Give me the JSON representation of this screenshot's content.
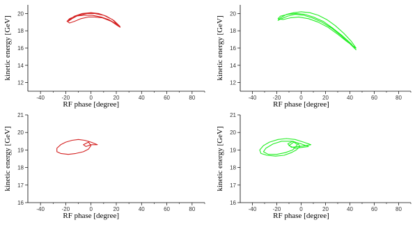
{
  "chart_data": [
    {
      "type": "line",
      "xlabel": "RF phase [degree]",
      "ylabel": "kinetic energy [GeV]",
      "xlim": [
        -50,
        90
      ],
      "ylim": [
        11,
        21
      ],
      "xticks": [
        "-40",
        "-20",
        "0",
        "20",
        "40",
        "60",
        "80"
      ],
      "yticks": [
        "12",
        "14",
        "16",
        "18",
        "20"
      ],
      "series": [
        {
          "color": "#d42020",
          "x": [
            23,
            17,
            10,
            3,
            -3,
            -10,
            -15,
            -18,
            -17,
            -13,
            -7,
            0,
            6,
            12,
            18,
            23,
            22,
            16,
            9,
            3,
            -2,
            -8,
            -13,
            -17,
            -19,
            -17,
            -12,
            -6,
            1,
            8,
            14,
            20,
            23
          ],
          "y": [
            18.4,
            19.3,
            19.8,
            20.0,
            20.0,
            19.8,
            19.4,
            19.1,
            19.3,
            19.7,
            20.0,
            20.1,
            20.0,
            19.7,
            19.2,
            18.5,
            18.5,
            19.1,
            19.5,
            19.6,
            19.6,
            19.4,
            19.1,
            18.9,
            19.1,
            19.4,
            19.7,
            19.8,
            19.8,
            19.6,
            19.3,
            18.8,
            18.4
          ]
        }
      ]
    },
    {
      "type": "line",
      "xlabel": "RF phase [degree]",
      "ylabel": "kinetic energy [GeV]",
      "xlim": [
        -50,
        90
      ],
      "ylim": [
        11,
        21
      ],
      "xticks": [
        "-40",
        "-20",
        "0",
        "20",
        "40",
        "60",
        "80"
      ],
      "yticks": [
        "12",
        "14",
        "16",
        "18",
        "20"
      ],
      "series": [
        {
          "color": "#22ee22",
          "x": [
            45,
            40,
            33,
            25,
            17,
            9,
            2,
            -5,
            -11,
            -16,
            -19,
            -17,
            -12,
            -6,
            0,
            7,
            14,
            21,
            28,
            35,
            41,
            45,
            38,
            30,
            22,
            14,
            6,
            -2,
            -9,
            -15,
            -19,
            -17,
            -11,
            -4,
            3,
            10,
            18,
            26,
            34,
            41,
            45
          ],
          "y": [
            15.8,
            16.5,
            17.4,
            18.3,
            19.0,
            19.5,
            19.8,
            19.9,
            19.7,
            19.4,
            19.2,
            19.5,
            19.9,
            20.1,
            20.2,
            20.1,
            19.8,
            19.3,
            18.6,
            17.7,
            16.8,
            16.0,
            16.7,
            17.6,
            18.4,
            19.0,
            19.4,
            19.6,
            19.5,
            19.3,
            19.4,
            19.7,
            19.9,
            20.0,
            19.9,
            19.6,
            19.1,
            18.3,
            17.4,
            16.5,
            15.8
          ]
        }
      ]
    },
    {
      "type": "line",
      "xlabel": "RF phase [degree]",
      "ylabel": "kinetic energy [GeV]",
      "xlim": [
        -50,
        90
      ],
      "ylim": [
        16,
        21
      ],
      "xticks": [
        "-40",
        "-20",
        "0",
        "20",
        "40",
        "60",
        "80"
      ],
      "yticks": [
        "16",
        "17",
        "18",
        "19",
        "20",
        "21"
      ],
      "series": [
        {
          "color": "#d42020",
          "x": [
            5,
            0,
            -5,
            -10,
            -15,
            -20,
            -24,
            -27,
            -27,
            -24,
            -18,
            -12,
            -6,
            -2,
            0,
            -2,
            -6,
            -4,
            0,
            5
          ],
          "y": [
            19.3,
            19.45,
            19.55,
            19.6,
            19.55,
            19.45,
            19.3,
            19.1,
            18.9,
            18.8,
            18.75,
            18.8,
            18.9,
            19.05,
            19.25,
            19.45,
            19.3,
            19.2,
            19.3,
            19.3
          ]
        }
      ]
    },
    {
      "type": "line",
      "xlabel": "RF phase [degree]",
      "ylabel": "kinetic energy [GeV]",
      "xlim": [
        -50,
        90
      ],
      "ylim": [
        16,
        21
      ],
      "xticks": [
        "-40",
        "-20",
        "0",
        "20",
        "40",
        "60",
        "80"
      ],
      "yticks": [
        "16",
        "17",
        "18",
        "19",
        "20",
        "21"
      ],
      "series": [
        {
          "color": "#22ee22",
          "x": [
            8,
            2,
            -5,
            -12,
            -19,
            -26,
            -31,
            -34,
            -33,
            -28,
            -21,
            -14,
            -8,
            -4,
            -1,
            -3,
            -7,
            -11,
            -8,
            -2,
            4,
            8
          ],
          "y": [
            19.3,
            19.45,
            19.6,
            19.65,
            19.6,
            19.45,
            19.25,
            19.0,
            18.8,
            18.7,
            18.65,
            18.7,
            18.85,
            19.0,
            19.2,
            19.4,
            19.5,
            19.35,
            19.15,
            19.2,
            19.25,
            19.3
          ]
        },
        {
          "color": "#22ee22",
          "x": [
            6,
            0,
            -8,
            -16,
            -23,
            -29,
            -31,
            -27,
            -20,
            -13,
            -7,
            -3,
            -6,
            -10,
            -5,
            1,
            6
          ],
          "y": [
            19.2,
            19.35,
            19.5,
            19.5,
            19.35,
            19.1,
            18.9,
            18.75,
            18.75,
            18.85,
            19.0,
            19.3,
            19.45,
            19.25,
            19.1,
            19.15,
            19.2
          ]
        }
      ]
    }
  ]
}
